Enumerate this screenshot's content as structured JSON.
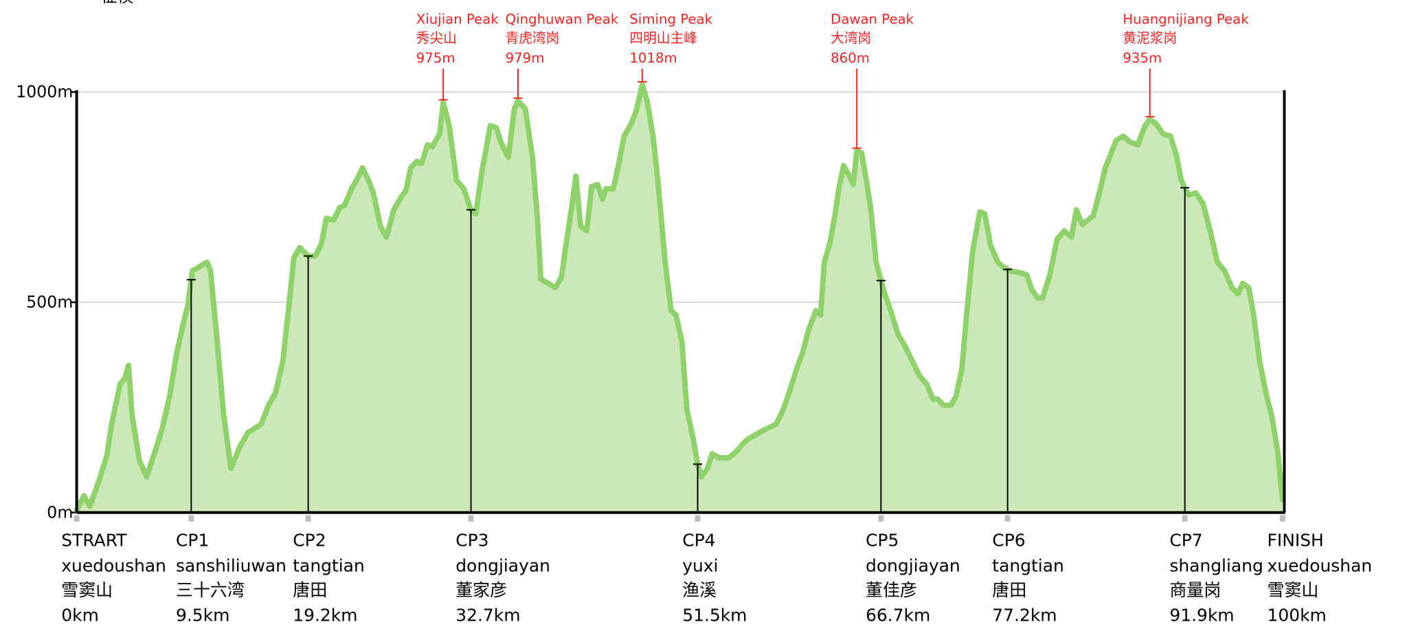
{
  "chart_data": {
    "type": "area",
    "top_label": "征模",
    "series": [
      {
        "color": "#8fd16a",
        "fill": "#cde8b8",
        "x": [
          0.0,
          0.6,
          1.1,
          1.9,
          2.5,
          2.9,
          3.6,
          4.0,
          4.3,
          4.6,
          5.2,
          5.8,
          6.5,
          7.1,
          7.7,
          8.3,
          8.8,
          9.2,
          9.6,
          10.2,
          10.8,
          11.1,
          11.6,
          12.2,
          12.8,
          13.5,
          14.2,
          15.3,
          15.9,
          16.5,
          17.1,
          17.6,
          18.0,
          18.5,
          19.2,
          19.8,
          20.3,
          20.7,
          21.3,
          21.8,
          22.2,
          22.8,
          23.3,
          23.7,
          24.2,
          24.6,
          25.2,
          25.7,
          26.3,
          26.9,
          27.3,
          27.7,
          28.2,
          28.6,
          29.1,
          29.5,
          30.1,
          30.4,
          30.9,
          31.5,
          32.1,
          32.7,
          33.1,
          33.6,
          33.9,
          34.3,
          34.8,
          35.2,
          35.8,
          36.3,
          36.6,
          37.2,
          37.8,
          38.2,
          38.5,
          39.1,
          39.7,
          40.2,
          40.6,
          41.1,
          41.4,
          41.8,
          42.3,
          42.7,
          43.2,
          43.6,
          43.9,
          44.5,
          45.0,
          45.4,
          46.0,
          46.4,
          46.9,
          47.3,
          47.8,
          48.2,
          48.8,
          49.3,
          49.7,
          50.2,
          50.6,
          51.1,
          51.5,
          51.8,
          52.3,
          52.7,
          53.3,
          54.1,
          54.7,
          55.3,
          55.7,
          56.9,
          58.0,
          58.6,
          59.2,
          59.8,
          60.2,
          60.7,
          61.3,
          61.7,
          62.0,
          62.5,
          62.9,
          63.2,
          63.6,
          64.1,
          64.4,
          64.7,
          65.1,
          65.6,
          65.9,
          66.3,
          66.9,
          67.5,
          68.1,
          68.7,
          69.3,
          69.9,
          70.5,
          71.0,
          71.4,
          71.9,
          72.5,
          72.9,
          73.4,
          73.8,
          74.3,
          74.9,
          75.3,
          75.8,
          76.4,
          76.8,
          77.4,
          78.3,
          78.8,
          79.2,
          79.7,
          80.1,
          80.7,
          81.3,
          81.9,
          82.5,
          82.9,
          83.4,
          84.3,
          84.9,
          85.3,
          85.8,
          86.2,
          86.8,
          87.4,
          88.0,
          88.6,
          89.0,
          89.5,
          90.1,
          90.7,
          91.2,
          91.6,
          92.2,
          92.8,
          93.4,
          94.0,
          94.6,
          95.2,
          95.8,
          96.3,
          96.7,
          97.2,
          97.6,
          98.1,
          98.7,
          99.1,
          99.6,
          100.0
        ],
        "values": [
          5,
          40,
          15,
          80,
          135,
          210,
          305,
          320,
          350,
          230,
          125,
          85,
          145,
          200,
          275,
          380,
          445,
          490,
          575,
          585,
          595,
          575,
          425,
          230,
          105,
          155,
          190,
          210,
          255,
          285,
          360,
          490,
          605,
          630,
          610,
          610,
          640,
          700,
          695,
          725,
          730,
          770,
          795,
          820,
          790,
          760,
          680,
          655,
          720,
          750,
          765,
          820,
          835,
          830,
          875,
          870,
          900,
          975,
          920,
          790,
          770,
          720,
          710,
          810,
          855,
          920,
          915,
          880,
          845,
          960,
          979,
          960,
          845,
          705,
          555,
          545,
          535,
          560,
          640,
          735,
          800,
          680,
          670,
          775,
          780,
          745,
          770,
          770,
          835,
          895,
          925,
          955,
          1018,
          980,
          895,
          790,
          595,
          480,
          470,
          405,
          245,
          180,
          115,
          85,
          105,
          140,
          130,
          130,
          145,
          165,
          175,
          195,
          210,
          245,
          295,
          350,
          380,
          435,
          480,
          470,
          595,
          645,
          710,
          770,
          825,
          800,
          780,
          860,
          855,
          770,
          710,
          595,
          530,
          480,
          425,
          395,
          360,
          325,
          305,
          270,
          270,
          255,
          255,
          275,
          340,
          470,
          620,
          715,
          710,
          635,
          595,
          585,
          575,
          570,
          565,
          530,
          510,
          510,
          565,
          650,
          670,
          655,
          720,
          685,
          705,
          770,
          820,
          855,
          885,
          895,
          880,
          875,
          920,
          935,
          925,
          900,
          895,
          850,
          790,
          755,
          760,
          735,
          670,
          595,
          575,
          535,
          520,
          545,
          535,
          470,
          360,
          275,
          230,
          145,
          30
        ]
      }
    ],
    "xlim": [
      0,
      100
    ],
    "ylim": [
      0,
      1000
    ],
    "yticks": [
      {
        "value": 0,
        "label": "0m"
      },
      {
        "value": 500,
        "label": "500m"
      },
      {
        "value": 1000,
        "label": "1000m"
      }
    ],
    "grid": true,
    "xticks": [
      {
        "value": 0,
        "label": "0km"
      },
      {
        "value": 9.5,
        "label": "9.5km"
      },
      {
        "value": 19.2,
        "label": "19.2km"
      },
      {
        "value": 32.7,
        "label": "32.7km"
      },
      {
        "value": 51.5,
        "label": "51.5km"
      },
      {
        "value": 66.7,
        "label": "66.7km"
      },
      {
        "value": 77.2,
        "label": "77.2km"
      },
      {
        "value": 91.9,
        "label": "91.9km"
      },
      {
        "value": 100,
        "label": "100km"
      }
    ],
    "checkpoints": [
      {
        "code": "STRART",
        "name": "xuedoushan",
        "name_cn": "雪窦山"
      },
      {
        "code": "CP1",
        "name": "sanshiliuwan",
        "name_cn": "三十六湾"
      },
      {
        "code": "CP2",
        "name": "tangtian",
        "name_cn": "唐田"
      },
      {
        "code": "CP3",
        "name": "dongjiayan",
        "name_cn": "董家彦"
      },
      {
        "code": "CP4",
        "name": "yuxi",
        "name_cn": "渔溪"
      },
      {
        "code": "CP5",
        "name": "dongjiayan",
        "name_cn": "董佳彦"
      },
      {
        "code": "CP6",
        "name": "tangtian",
        "name_cn": "唐田"
      },
      {
        "code": "CP7",
        "name": "shangliang",
        "name_cn": "商量岗"
      },
      {
        "code": "FINISH",
        "name": "xuedoushan",
        "name_cn": "雪窦山"
      }
    ],
    "peaks": [
      {
        "name": "Xiujian Peak",
        "name_cn": "秀尖山",
        "elevation": {
          "value": 975,
          "label": "975m"
        },
        "km": 30.4
      },
      {
        "name": "Qinghuwan Peak",
        "name_cn": "青虎湾岗",
        "elevation": {
          "value": 979,
          "label": "979m"
        },
        "km": 36.6
      },
      {
        "name": "Siming Peak",
        "name_cn": "四明山主峰",
        "elevation": {
          "value": 1018,
          "label": "1018m"
        },
        "km": 46.9
      },
      {
        "name": "Dawan Peak",
        "name_cn": "大湾岗",
        "elevation": {
          "value": 860,
          "label": "860m"
        },
        "km": 64.7
      },
      {
        "name": "Huangnijiang Peak",
        "name_cn": "黄泥浆岗",
        "elevation": {
          "value": 935,
          "label": "935m"
        },
        "km": 89.0
      }
    ]
  }
}
